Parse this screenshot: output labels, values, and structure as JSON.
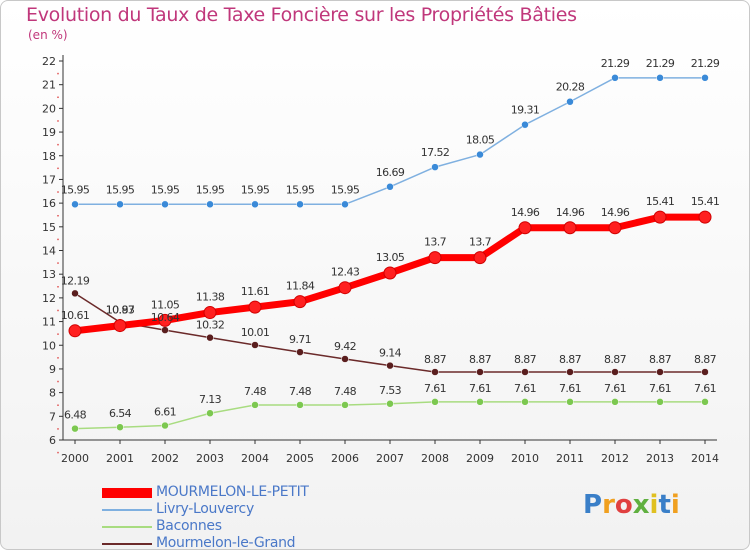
{
  "chart_data": {
    "type": "line",
    "title": "Evolution du Taux de Taxe Foncière sur les Propriétés Bâties",
    "subtitle": "(en %)",
    "x": [
      "2000",
      "2001",
      "2002",
      "2003",
      "2004",
      "2005",
      "2006",
      "2007",
      "2008",
      "2009",
      "2010",
      "2011",
      "2012",
      "2013",
      "2014"
    ],
    "ylim": [
      6,
      22
    ],
    "yticks": [
      6,
      7,
      8,
      9,
      10,
      11,
      12,
      13,
      14,
      15,
      16,
      17,
      18,
      19,
      20,
      21,
      22
    ],
    "grid": false,
    "legend_position": "bottom-left",
    "series": [
      {
        "name": "MOURMELON-LE-PETIT",
        "color": "#ff0000",
        "values": [
          10.61,
          10.83,
          11.05,
          11.38,
          11.61,
          11.84,
          12.43,
          13.05,
          13.7,
          13.7,
          14.96,
          14.96,
          14.96,
          15.41,
          15.41
        ],
        "labels": [
          "10.61",
          "10.83",
          "11.05",
          "11.38",
          "11.61",
          "11.84",
          "12.43",
          "13.05",
          "13.7",
          "13.7",
          "14.96",
          "14.96",
          "14.96",
          "15.41",
          "15.41"
        ]
      },
      {
        "name": "Livry-Louvercy",
        "color": "#4a90d0",
        "values": [
          15.95,
          15.95,
          15.95,
          15.95,
          15.95,
          15.95,
          15.95,
          16.69,
          17.52,
          18.05,
          19.31,
          20.28,
          21.29,
          21.29,
          21.29
        ],
        "labels": [
          "15.95",
          "15.95",
          "15.95",
          "15.95",
          "15.95",
          "15.95",
          "15.95",
          "16.69",
          "17.52",
          "18.05",
          "19.31",
          "20.28",
          "21.29",
          "21.29",
          "21.29"
        ]
      },
      {
        "name": "Baconnes",
        "color": "#8fd060",
        "values": [
          6.48,
          6.54,
          6.61,
          7.13,
          7.48,
          7.48,
          7.48,
          7.53,
          7.61,
          7.61,
          7.61,
          7.61,
          7.61,
          7.61,
          7.61
        ],
        "labels": [
          "6.48",
          "6.54",
          "6.61",
          "7.13",
          "7.48",
          "7.48",
          "7.48",
          "7.53",
          "7.61",
          "7.61",
          "7.61",
          "7.61",
          "7.61",
          "7.61",
          "7.61"
        ]
      },
      {
        "name": "Mourmelon-le-Grand",
        "color": "#6b2a2a",
        "values": [
          12.19,
          10.97,
          10.64,
          10.32,
          10.01,
          9.71,
          9.42,
          9.14,
          8.87,
          8.87,
          8.87,
          8.87,
          8.87,
          8.87,
          8.87
        ],
        "labels": [
          "12.19",
          "10.97",
          "10.64",
          "10.32",
          "10.01",
          "9.71",
          "9.42",
          "9.14",
          "8.87",
          "8.87",
          "8.87",
          "8.87",
          "8.87",
          "8.87",
          "8.87"
        ]
      }
    ]
  },
  "logo": {
    "letters": [
      "P",
      "r",
      "o",
      "x",
      "i",
      "t",
      "i"
    ],
    "colors": [
      "#3a7fc8",
      "#f0a020",
      "#e04040",
      "#60b040",
      "#e0c020",
      "#3a7fc8",
      "#f0a020"
    ]
  }
}
